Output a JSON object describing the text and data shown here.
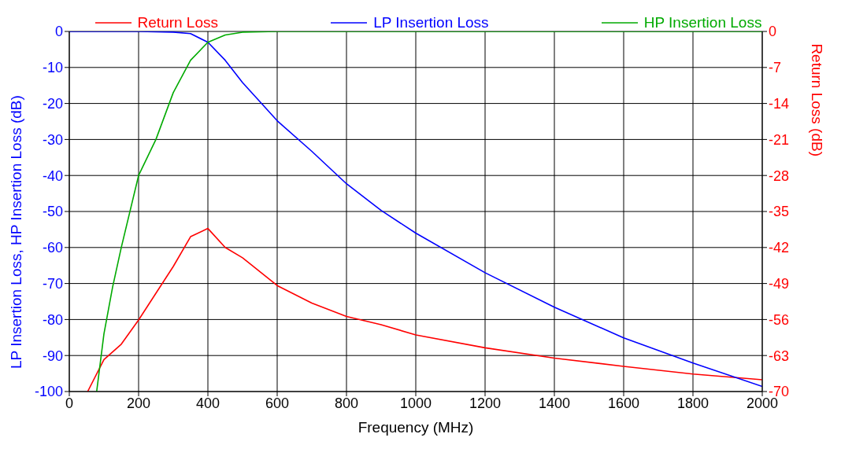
{
  "chart_data": {
    "type": "line",
    "xlabel": "Frequency (MHz)",
    "ylabel": "LP Insertion Loss, HP Insertion Loss (dB)",
    "y2label": "Return Loss (dB)",
    "xlim": [
      0,
      2000
    ],
    "xticks": [
      0,
      200,
      400,
      600,
      800,
      1000,
      1200,
      1400,
      1600,
      1800,
      2000
    ],
    "ylim": [
      -100,
      0
    ],
    "yticks": [
      -100,
      -90,
      -80,
      -70,
      -60,
      -50,
      -40,
      -30,
      -20,
      -10,
      0
    ],
    "y2lim": [
      -70,
      0
    ],
    "y2ticks": [
      -70,
      -63,
      -56,
      -49,
      -42,
      -35,
      -28,
      -21,
      -14,
      -7,
      0
    ],
    "grid": true,
    "legend": "top",
    "marker": "none",
    "line_style": "solid",
    "series": [
      {
        "name": "Return Loss",
        "color": "#ff0000",
        "axis": "y2",
        "x": [
          53,
          100,
          150,
          200,
          250,
          300,
          350,
          400,
          450,
          500,
          600,
          700,
          800,
          900,
          1000,
          1200,
          1400,
          1600,
          1800,
          2000
        ],
        "values": [
          -70,
          -63.8,
          -60.8,
          -56.1,
          -50.9,
          -45.7,
          -39.9,
          -38.3,
          -42,
          -44,
          -49.4,
          -52.8,
          -55.4,
          -57,
          -59,
          -61.5,
          -63.5,
          -65.1,
          -66.6,
          -67.7
        ]
      },
      {
        "name": "LP Insertion Loss",
        "color": "#0000ff",
        "axis": "y",
        "x": [
          0,
          200,
          300,
          350,
          400,
          450,
          500,
          600,
          700,
          800,
          900,
          1000,
          1200,
          1400,
          1600,
          1800,
          2000
        ],
        "values": [
          0,
          0,
          -0.2,
          -0.6,
          -3,
          -8,
          -14.2,
          -24.8,
          -33.3,
          -42.3,
          -49.7,
          -56,
          -67,
          -76.6,
          -85.1,
          -92.1,
          -98.6
        ]
      },
      {
        "name": "HP Insertion Loss",
        "color": "#00aa00",
        "axis": "y",
        "x": [
          79,
          100,
          125,
          150,
          200,
          250,
          300,
          350,
          400,
          450,
          500,
          600,
          1000,
          2000
        ],
        "values": [
          -100,
          -84,
          -71,
          -60,
          -40,
          -30,
          -17,
          -8,
          -3,
          -1,
          -0.2,
          0,
          0,
          0
        ]
      }
    ]
  }
}
